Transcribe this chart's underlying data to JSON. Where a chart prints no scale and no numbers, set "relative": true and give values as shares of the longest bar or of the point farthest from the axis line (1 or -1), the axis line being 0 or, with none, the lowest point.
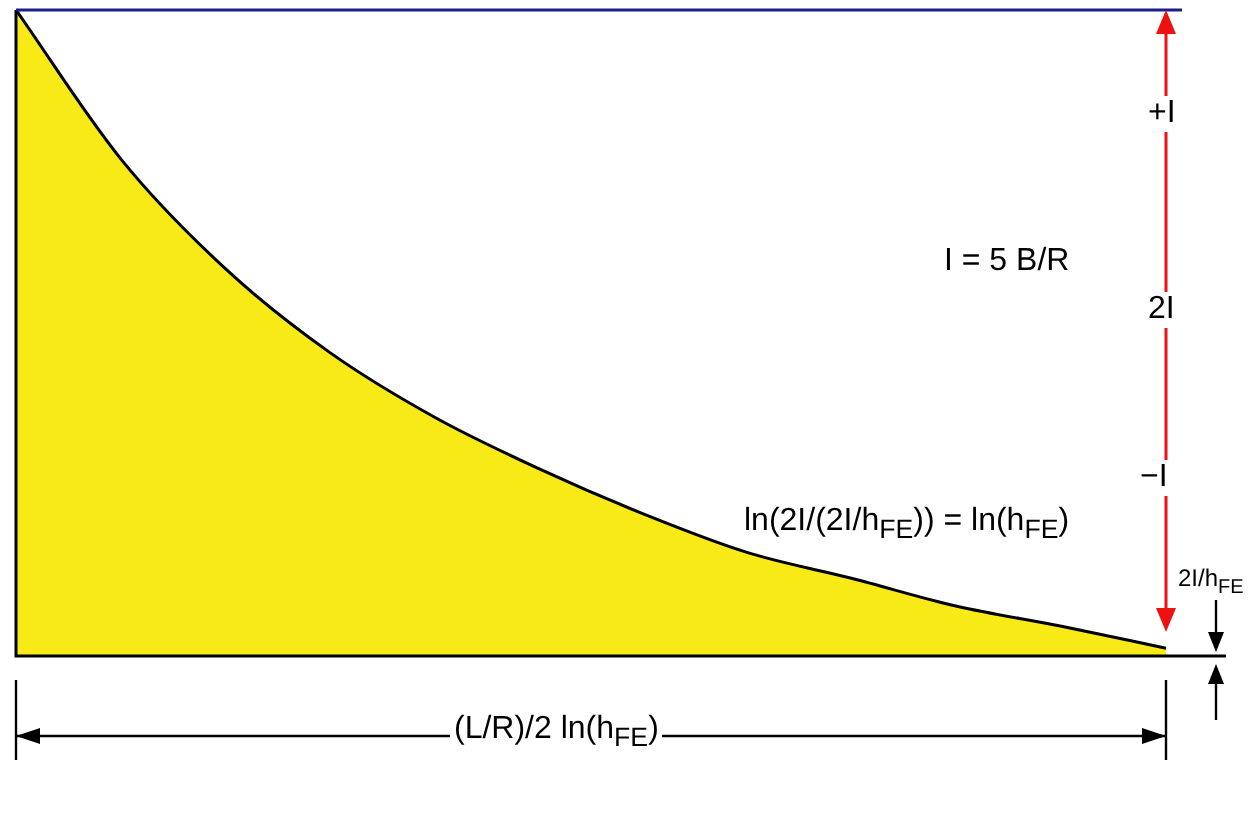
{
  "chart_data": {
    "type": "area",
    "relative": true,
    "legend": false,
    "categories": [
      null,
      null,
      null,
      null,
      null,
      null,
      null,
      null,
      null,
      null,
      null,
      null
    ],
    "series": [
      {
        "color": "#f7ea17",
        "values": [
          1.0,
          0.77,
          0.6,
          0.47,
          0.37,
          0.29,
          0.22,
          0.16,
          0.12,
          0.077,
          0.046,
          0.012
        ]
      }
    ],
    "ref_lines": [
      {
        "axis": "y",
        "value": 1,
        "color": "#1c1c8c"
      }
    ],
    "annotations": [
      "+I",
      "2I",
      "−I",
      "I = 5 B/R",
      "ln(2I/(2I/h$_{FE}$)) = ln(h$_{FE}$)",
      "2I/h$_{FE}$",
      "(L/R)/2 ln(h$_{FE}$)"
    ]
  }
}
